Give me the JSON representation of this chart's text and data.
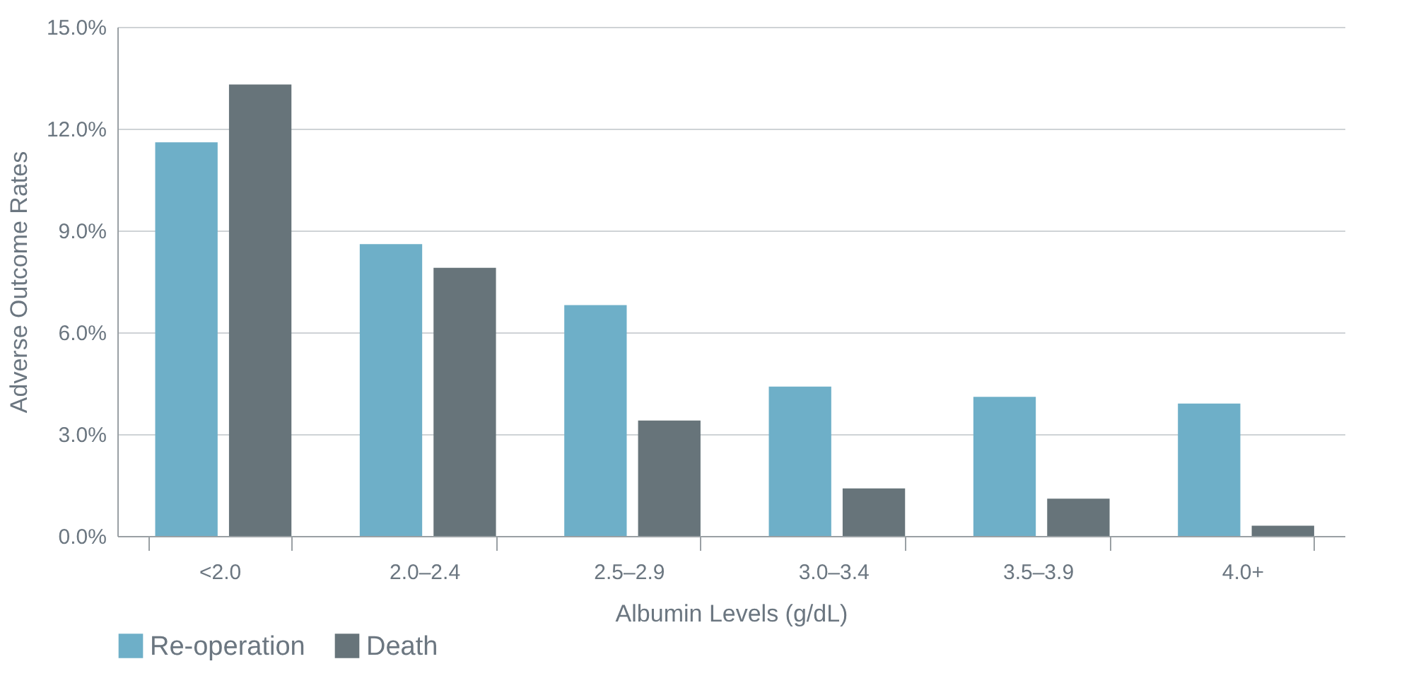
{
  "chart_data": {
    "type": "bar",
    "xlabel": "Albumin Levels (g/dL)",
    "ylabel": "Adverse Outcome Rates",
    "categories": [
      "<2.0",
      "2.0–2.4",
      "2.5–2.9",
      "3.0–3.4",
      "3.5–3.9",
      "4.0+"
    ],
    "series": [
      {
        "name": "Re-operation",
        "color": "#6eafc8",
        "values": [
          11.6,
          8.6,
          6.8,
          4.4,
          4.1,
          3.9
        ]
      },
      {
        "name": "Death",
        "color": "#67747a",
        "values": [
          13.3,
          7.9,
          3.4,
          1.4,
          1.1,
          0.3
        ]
      }
    ],
    "ylim": [
      0,
      15
    ],
    "yticks": [
      {
        "value": 0,
        "label": "0.0%"
      },
      {
        "value": 3,
        "label": "3.0%"
      },
      {
        "value": 6,
        "label": "6.0%"
      },
      {
        "value": 9,
        "label": "9.0%"
      },
      {
        "value": 12,
        "label": "12.0%"
      },
      {
        "value": 15,
        "label": "15.0%"
      }
    ],
    "grid": "y",
    "legend": "bottom left"
  }
}
